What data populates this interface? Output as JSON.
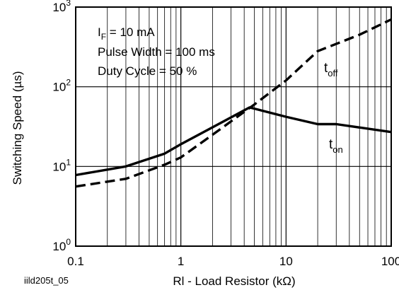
{
  "chart_data": {
    "type": "line",
    "xscale": "log",
    "yscale": "log",
    "xlim": [
      0.1,
      100
    ],
    "ylim": [
      1,
      1000
    ],
    "grid": true,
    "xlabel": "Rl - Load Resistor (kΩ)",
    "ylabel": "Switching Speed (µs)",
    "xticks": [
      {
        "value": 0.1,
        "label": "0.1"
      },
      {
        "value": 1,
        "label": "1"
      },
      {
        "value": 10,
        "label": "10"
      },
      {
        "value": 100,
        "label": "100"
      }
    ],
    "yticks": [
      {
        "value": 1,
        "base": "10",
        "exp": "0"
      },
      {
        "value": 10,
        "base": "10",
        "exp": "1"
      },
      {
        "value": 100,
        "base": "10",
        "exp": "2"
      },
      {
        "value": 1000,
        "base": "10",
        "exp": "3"
      }
    ],
    "conditions": {
      "current_symbol": "I",
      "current_subscript": "F",
      "current_value": " = 10 mA",
      "pulse_width": "Pulse Width = 100 ms",
      "duty_cycle": "Duty Cycle = 50 %"
    },
    "series": [
      {
        "name_main": "t",
        "name_sub": "off",
        "style": "dashed",
        "x": [
          0.1,
          0.3,
          0.7,
          1,
          2,
          5,
          10,
          20,
          50,
          100
        ],
        "y": [
          5.6,
          7,
          10.5,
          13,
          25,
          60,
          120,
          280,
          450,
          700
        ]
      },
      {
        "name_main": "t",
        "name_sub": "on",
        "style": "solid",
        "x": [
          0.1,
          0.3,
          0.7,
          1,
          2,
          4.5,
          10,
          20,
          30,
          100
        ],
        "y": [
          7.8,
          10,
          14.5,
          19,
          31,
          55,
          42,
          34,
          34,
          27
        ]
      }
    ],
    "figure_id": "iild205t_05"
  }
}
